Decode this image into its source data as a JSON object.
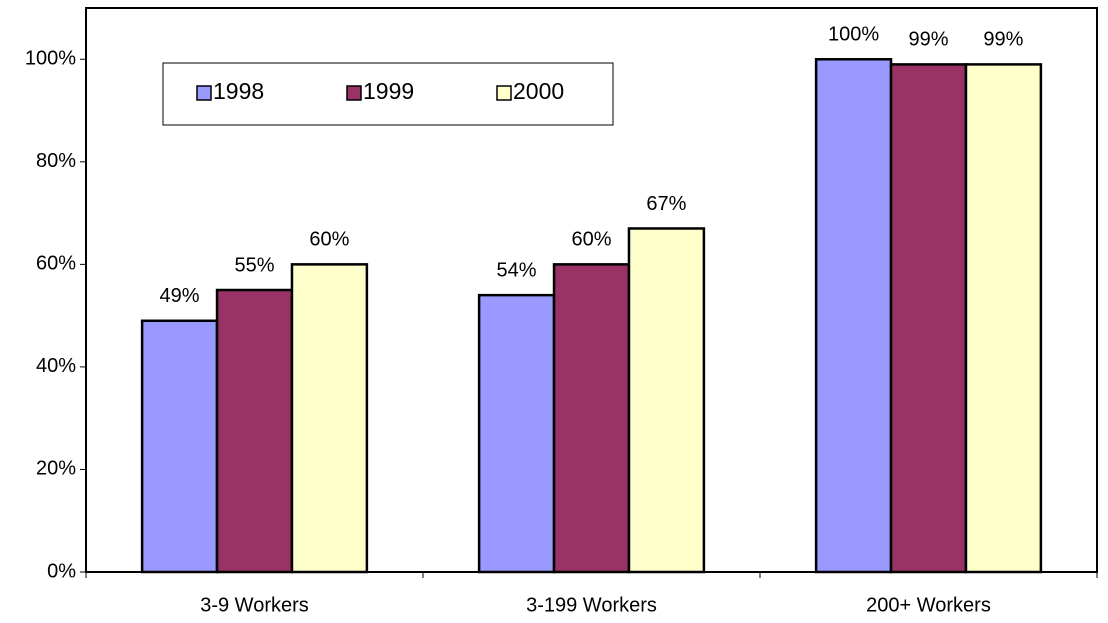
{
  "chart_data": {
    "type": "bar",
    "categories": [
      "3-9 Workers",
      "3-199 Workers",
      "200+ Workers"
    ],
    "series": [
      {
        "name": "1998",
        "color": "#9999ff",
        "values": [
          49,
          54,
          100
        ],
        "value_labels": [
          "49%",
          "54%",
          "100%"
        ]
      },
      {
        "name": "1999",
        "color": "#993366",
        "values": [
          55,
          60,
          99
        ],
        "value_labels": [
          "55%",
          "60%",
          "99%"
        ]
      },
      {
        "name": "2000",
        "color": "#ffffcc",
        "values": [
          60,
          67,
          99
        ],
        "value_labels": [
          "60%",
          "67%",
          "99%"
        ]
      }
    ],
    "ylim": [
      0,
      110
    ],
    "yticks": [
      {
        "value": 0,
        "label": "0%"
      },
      {
        "value": 20,
        "label": "20%"
      },
      {
        "value": 40,
        "label": "40%"
      },
      {
        "value": 60,
        "label": "60%"
      },
      {
        "value": 80,
        "label": "80%"
      },
      {
        "value": 100,
        "label": "100%"
      }
    ],
    "grid": false,
    "legend": "top-left"
  }
}
